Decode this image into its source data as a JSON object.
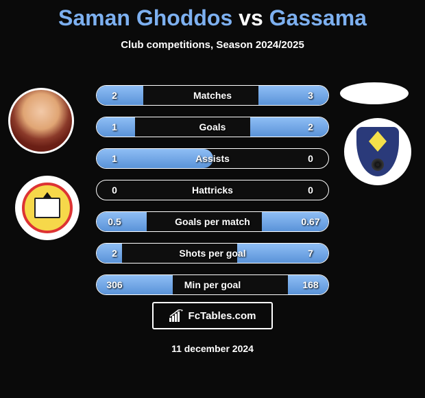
{
  "title": {
    "player1": "Saman Ghoddos",
    "vs": "vs",
    "player2": "Gassama",
    "player1_color": "#7db0f0",
    "vs_color": "#ffffff",
    "player2_color": "#7db0f0",
    "fontsize": 32
  },
  "subtitle": "Club competitions, Season 2024/2025",
  "stats": {
    "type": "comparison-bars",
    "bar_color": "#7bb0ea",
    "border_color": "#ffffff",
    "text_color": "#ffffff",
    "background_color": "#0a0a0a",
    "label_fontsize": 14,
    "value_fontsize": 14,
    "rows": [
      {
        "label": "Matches",
        "left": "2",
        "right": "3",
        "left_pct": 40,
        "right_pct": 60
      },
      {
        "label": "Goals",
        "left": "1",
        "right": "2",
        "left_pct": 33,
        "right_pct": 67
      },
      {
        "label": "Assists",
        "left": "1",
        "right": "0",
        "left_pct": 100,
        "right_pct": 0
      },
      {
        "label": "Hattricks",
        "left": "0",
        "right": "0",
        "left_pct": 0,
        "right_pct": 0
      },
      {
        "label": "Goals per match",
        "left": "0.5",
        "right": "0.67",
        "left_pct": 43,
        "right_pct": 57
      },
      {
        "label": "Shots per goal",
        "left": "2",
        "right": "7",
        "left_pct": 22,
        "right_pct": 78
      },
      {
        "label": "Min per goal",
        "left": "306",
        "right": "168",
        "left_pct": 65,
        "right_pct": 35
      }
    ]
  },
  "branding": {
    "text": "FcTables.com",
    "icon_name": "bar-chart-icon"
  },
  "date": "11 december 2024",
  "avatars": {
    "left_player_bg": "#e0a574",
    "left_club_primary": "#f6d84a",
    "left_club_border": "#d33333",
    "right_player_bg": "#ffffff",
    "right_club_bg": "#2a3a7a",
    "right_club_accent": "#f5e04a"
  }
}
